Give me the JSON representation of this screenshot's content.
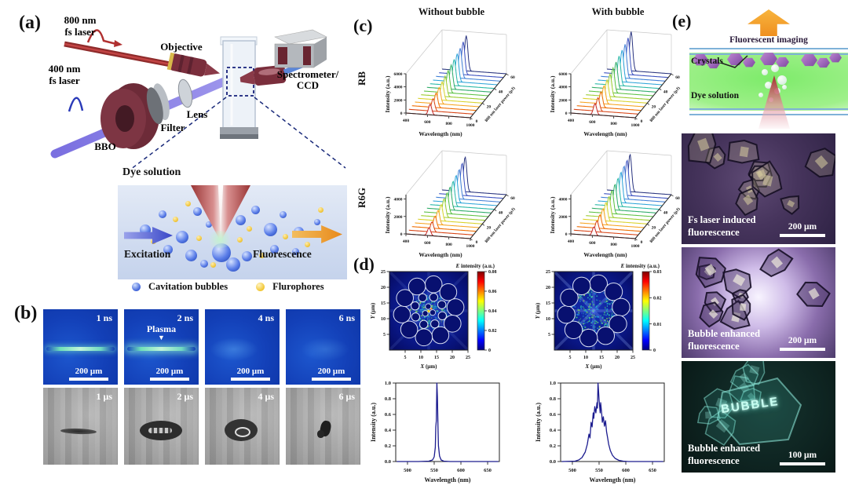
{
  "figure_labels": {
    "a": "(a)",
    "b": "(b)",
    "c": "(c)",
    "d": "(d)",
    "e": "(e)"
  },
  "panel_a": {
    "laser800_l1": "800 nm",
    "laser800_l2": "fs laser",
    "laser400_l1": "400 nm",
    "laser400_l2": "fs laser",
    "objective": "Objective",
    "spectrometer_l1": "Spectrometer/",
    "spectrometer_l2": "CCD",
    "lens": "Lens",
    "filter": "Filter",
    "bbo": "BBO",
    "dye_solution": "Dye solution",
    "excitation": "Excitation",
    "fluorescence": "Fluorescence",
    "legend": [
      {
        "label": "Cavitation bubbles",
        "color": "#3f63d8"
      },
      {
        "label": "Flurophores",
        "color": "#f2c632"
      }
    ]
  },
  "panel_b": {
    "frames_ns": [
      "1 ns",
      "2 ns",
      "4 ns",
      "6 ns"
    ],
    "frames_us": [
      "1 μs",
      "2 μs",
      "4 μs",
      "6 μs"
    ],
    "plasma": "Plasma",
    "scale_bar": "200 μm"
  },
  "panel_c": {
    "col_titles": [
      "Without bubble",
      "With bubble"
    ],
    "row_labels": [
      "RB",
      "R6G"
    ]
  },
  "panel_e": {
    "fluorescent_imaging": "Fluorescent imaging",
    "crystals": "Crystals",
    "dye_solution": "Dye solution",
    "images": [
      {
        "caption_l1": "Fs laser induced",
        "caption_l2": "fluorescence",
        "scale_bar": "200 μm"
      },
      {
        "caption_l1": "Bubble enhanced",
        "caption_l2": "fluorescence",
        "scale_bar": "200 μm"
      },
      {
        "caption_l1": "Bubble enhanced",
        "caption_l2": "fluorescence",
        "scale_bar": "100 μm",
        "inscription": "BUBBLE"
      }
    ]
  },
  "chart_data": [
    {
      "id": "waterfall-rb-without",
      "type": "line",
      "style": "waterfall3d",
      "condition": "Without bubble",
      "dye": "RB",
      "xlabel": "Wavelength (nm)",
      "ylabel": "Intensity (a.u.)",
      "zlabel": "800 nm laser power (μJ)",
      "x_range": [
        400,
        1000
      ],
      "x_ticks": [
        400,
        600,
        800,
        1000
      ],
      "y_ticks": [
        0,
        2000,
        4000,
        6000
      ],
      "y_max": 6000,
      "z_ticks": [
        0,
        20,
        40,
        60
      ],
      "powers_uJ": [
        0,
        5,
        10,
        15,
        20,
        25,
        30,
        35,
        40,
        45,
        50,
        55,
        60
      ],
      "peak_nm": 625,
      "peak_intensities": [
        1600,
        1900,
        2200,
        2500,
        2800,
        3100,
        3400,
        3700,
        4000,
        4300,
        4600,
        5000,
        5400
      ]
    },
    {
      "id": "waterfall-rb-with",
      "type": "line",
      "style": "waterfall3d",
      "condition": "With bubble",
      "dye": "RB",
      "xlabel": "Wavelength (nm)",
      "ylabel": "Intensity (a.u.)",
      "zlabel": "800 nm laser power (μJ)",
      "x_range": [
        400,
        1000
      ],
      "x_ticks": [
        400,
        600,
        800,
        1000
      ],
      "y_ticks": [
        0,
        2000,
        4000,
        6000
      ],
      "y_max": 6000,
      "z_ticks": [
        0,
        20,
        40,
        60
      ],
      "powers_uJ": [
        0,
        5,
        10,
        15,
        20,
        25,
        30,
        35,
        40,
        45,
        50,
        55,
        60
      ],
      "peak_nm": 625,
      "peak_intensities": [
        1700,
        2050,
        2400,
        2750,
        3100,
        3450,
        3800,
        4150,
        4500,
        4850,
        5200,
        5600,
        6000
      ]
    },
    {
      "id": "waterfall-r6g-without",
      "type": "line",
      "style": "waterfall3d",
      "condition": "Without bubble",
      "dye": "R6G",
      "xlabel": "Wavelength (nm)",
      "ylabel": "Intensity (a.u.)",
      "zlabel": "800 nm laser power (μJ)",
      "x_range": [
        400,
        1000
      ],
      "x_ticks": [
        400,
        600,
        800,
        1000
      ],
      "y_ticks": [
        0,
        2000,
        4000
      ],
      "y_max": 4500,
      "z_ticks": [
        0,
        20,
        40,
        60
      ],
      "powers_uJ": [
        0,
        5,
        10,
        15,
        20,
        25,
        30,
        35,
        40,
        45,
        50,
        55,
        60
      ],
      "peak_nm": 615,
      "peak_intensities": [
        900,
        1150,
        1400,
        1650,
        1900,
        2150,
        2400,
        2650,
        2900,
        3150,
        3400,
        3700,
        4000
      ]
    },
    {
      "id": "waterfall-r6g-with",
      "type": "line",
      "style": "waterfall3d",
      "condition": "With bubble",
      "dye": "R6G",
      "xlabel": "Wavelength (nm)",
      "ylabel": "Intensity (a.u.)",
      "zlabel": "800 nm laser power (μJ)",
      "x_range": [
        400,
        1000
      ],
      "x_ticks": [
        400,
        600,
        800,
        1000
      ],
      "y_ticks": [
        0,
        2000,
        4000
      ],
      "y_max": 4500,
      "z_ticks": [
        0,
        20,
        40,
        60
      ],
      "powers_uJ": [
        0,
        5,
        10,
        15,
        20,
        25,
        30,
        35,
        40,
        45,
        50,
        55,
        60
      ],
      "peak_nm": 615,
      "peak_intensities": [
        1000,
        1280,
        1560,
        1840,
        2120,
        2400,
        2680,
        2960,
        3240,
        3520,
        3800,
        4050,
        4300
      ]
    },
    {
      "id": "heatmap-structured",
      "type": "heatmap",
      "colorbar_title_var": "E",
      "colorbar_title_rest": " intensity (a.u.)",
      "colorbar_ticks": [
        0,
        0.02,
        0.04,
        0.06,
        0.08
      ],
      "value_range": [
        0,
        0.08
      ],
      "xlabel_var": "X",
      "xlabel_unit": " (μm)",
      "ylabel_var": "Y",
      "ylabel_unit": " (μm)",
      "x_ticks": [
        5,
        10,
        15,
        20,
        25
      ],
      "y_ticks": [
        5,
        10,
        15,
        20,
        25
      ],
      "axis_range": [
        0,
        25
      ],
      "bubble_rings": [
        {
          "count": 10,
          "ring_radius_um": 8.6,
          "bubble_radius_um": 2.7
        },
        {
          "count": 8,
          "ring_radius_um": 4.6,
          "bubble_radius_um": 1.3
        }
      ],
      "center_bubbles": 3,
      "speckle_radius_um": 6.2,
      "hotspot": true,
      "seed": 7
    },
    {
      "id": "heatmap-random",
      "type": "heatmap",
      "colorbar_title_var": "E",
      "colorbar_title_rest": " intensity (a.u.)",
      "colorbar_ticks": [
        0,
        0.01,
        0.02,
        0.03
      ],
      "value_range": [
        0,
        0.03
      ],
      "xlabel_var": "X",
      "xlabel_unit": " (μm)",
      "ylabel_var": "Y",
      "ylabel_unit": " (μm)",
      "x_ticks": [
        5,
        10,
        15,
        20,
        25
      ],
      "y_ticks": [
        5,
        10,
        15,
        20,
        25
      ],
      "axis_range": [
        0,
        25
      ],
      "bubble_rings": [
        {
          "count": 10,
          "ring_radius_um": 8.8,
          "bubble_radius_um": 2.8
        }
      ],
      "center_bubbles": 0,
      "speckle_radius_um": 8.8,
      "hotspot": false,
      "seed": 21
    },
    {
      "id": "spectrum-narrow",
      "type": "line",
      "xlabel": "Wavelength (nm)",
      "ylabel": "Intensity (a.u.)",
      "x_range": [
        478,
        672
      ],
      "x_ticks": [
        500,
        550,
        600,
        650
      ],
      "y_ticks": [
        "0.0",
        "0.2",
        "0.4",
        "0.6",
        "0.8",
        "1.0"
      ],
      "peak_nm": 555,
      "points": [
        [
          480,
          0
        ],
        [
          520,
          0
        ],
        [
          540,
          0.005
        ],
        [
          547,
          0.02
        ],
        [
          550,
          0.06
        ],
        [
          552,
          0.18
        ],
        [
          553,
          0.44
        ],
        [
          554,
          0.52
        ],
        [
          554.5,
          0.8
        ],
        [
          555,
          1.0
        ],
        [
          556,
          0.82
        ],
        [
          557,
          0.45
        ],
        [
          558,
          0.2
        ],
        [
          560,
          0.07
        ],
        [
          563,
          0.02
        ],
        [
          568,
          0.005
        ],
        [
          580,
          0
        ],
        [
          670,
          0
        ]
      ]
    },
    {
      "id": "spectrum-broad",
      "type": "line",
      "xlabel": "Wavelength (nm)",
      "ylabel": "Intensity (a.u.)",
      "x_range": [
        478,
        672
      ],
      "x_ticks": [
        500,
        550,
        600,
        650
      ],
      "y_ticks": [
        "0.0",
        "0.2",
        "0.4",
        "0.6",
        "0.8",
        "1.0"
      ],
      "peak_nm": 548,
      "points": [
        [
          480,
          0
        ],
        [
          505,
          0.005
        ],
        [
          512,
          0.02
        ],
        [
          518,
          0.05
        ],
        [
          524,
          0.12
        ],
        [
          528,
          0.22
        ],
        [
          531,
          0.35
        ],
        [
          533,
          0.3
        ],
        [
          535,
          0.5
        ],
        [
          537,
          0.44
        ],
        [
          539,
          0.62
        ],
        [
          540,
          0.55
        ],
        [
          542,
          0.7
        ],
        [
          544,
          0.62
        ],
        [
          546,
          0.75
        ],
        [
          547,
          0.68
        ],
        [
          548,
          1.0
        ],
        [
          549,
          0.9
        ],
        [
          550,
          0.78
        ],
        [
          552,
          0.62
        ],
        [
          553,
          0.75
        ],
        [
          555,
          0.6
        ],
        [
          556,
          0.5
        ],
        [
          558,
          0.57
        ],
        [
          560,
          0.45
        ],
        [
          562,
          0.52
        ],
        [
          564,
          0.38
        ],
        [
          566,
          0.3
        ],
        [
          568,
          0.22
        ],
        [
          571,
          0.14
        ],
        [
          575,
          0.08
        ],
        [
          580,
          0.04
        ],
        [
          587,
          0.015
        ],
        [
          595,
          0.005
        ],
        [
          605,
          0
        ],
        [
          670,
          0
        ]
      ]
    }
  ]
}
